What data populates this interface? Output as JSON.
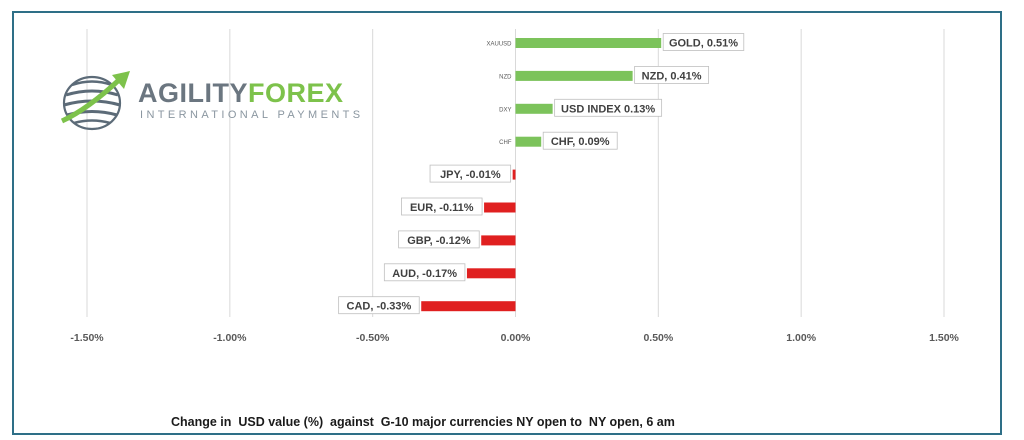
{
  "logo": {
    "name_part1": "AGILITY",
    "name_part2": "FOREX",
    "tagline": "INTERNATIONAL PAYMENTS"
  },
  "caption": "Change in  USD value (%)  against  G-10 major currencies NY open to  NY open, 6 am",
  "colors": {
    "positive": "#7cc35b",
    "negative": "#e02020",
    "grid": "#d9d9d9",
    "frame": "#2e6f87"
  },
  "chart_data": {
    "type": "bar",
    "orientation": "horizontal",
    "xlim": [
      -1.5,
      1.5
    ],
    "x_ticks": [
      -1.5,
      -1.0,
      -0.5,
      0.0,
      0.5,
      1.0,
      1.5
    ],
    "x_tick_labels": [
      "-1.50%",
      "-1.00%",
      "-0.50%",
      "0.00%",
      "0.50%",
      "1.00%",
      "1.50%"
    ],
    "grid": true,
    "categories": [
      "XAUUSD",
      "NZD",
      "DXY",
      "CHF",
      "JPY",
      "EUR",
      "GBP",
      "AUD",
      "CAD"
    ],
    "values": [
      0.51,
      0.41,
      0.13,
      0.09,
      -0.01,
      -0.11,
      -0.12,
      -0.17,
      -0.33
    ],
    "data_labels": [
      "GOLD, 0.51%",
      "NZD, 0.41%",
      "USD INDEX 0.13%",
      "CHF, 0.09%",
      "JPY, -0.01%",
      "EUR, -0.11%",
      "GBP, -0.12%",
      "AUD, -0.17%",
      "CAD, -0.33%"
    ]
  }
}
